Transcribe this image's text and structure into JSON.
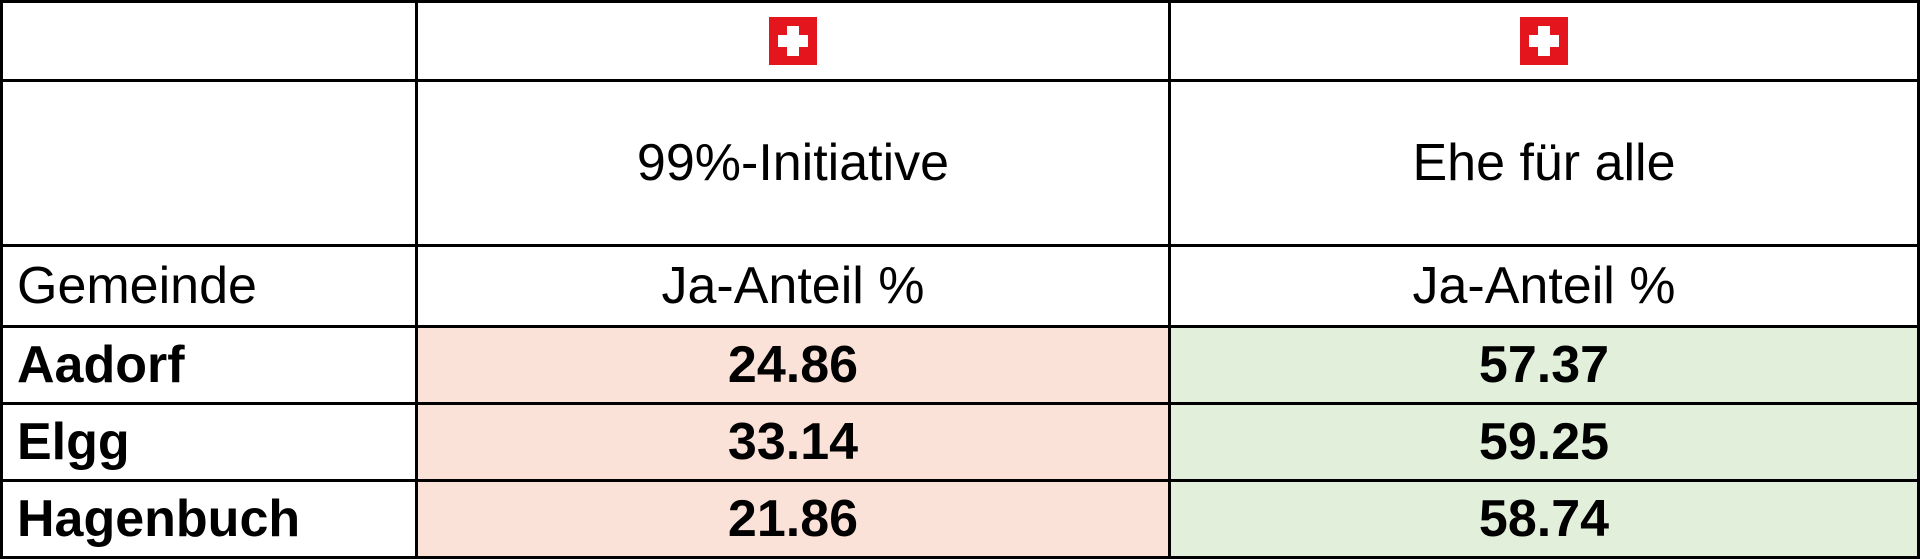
{
  "colors": {
    "flag_red": "#e4151d",
    "initiative_fill": "#fbe2d8",
    "marriage_fill": "#e2efdb"
  },
  "flags": [
    "swiss-flag",
    "swiss-flag"
  ],
  "columns": {
    "initiative": "99%-Initiative",
    "marriage": "Ehe für alle"
  },
  "header": {
    "municipality": "Gemeinde",
    "share_initiative": "Ja-Anteil %",
    "share_marriage": "Ja-Anteil %"
  },
  "rows": [
    {
      "name": "Aadorf",
      "initiative": "24.86",
      "marriage": "57.37"
    },
    {
      "name": "Elgg",
      "initiative": "33.14",
      "marriage": "59.25"
    },
    {
      "name": "Hagenbuch",
      "initiative": "21.86",
      "marriage": "58.74"
    }
  ]
}
